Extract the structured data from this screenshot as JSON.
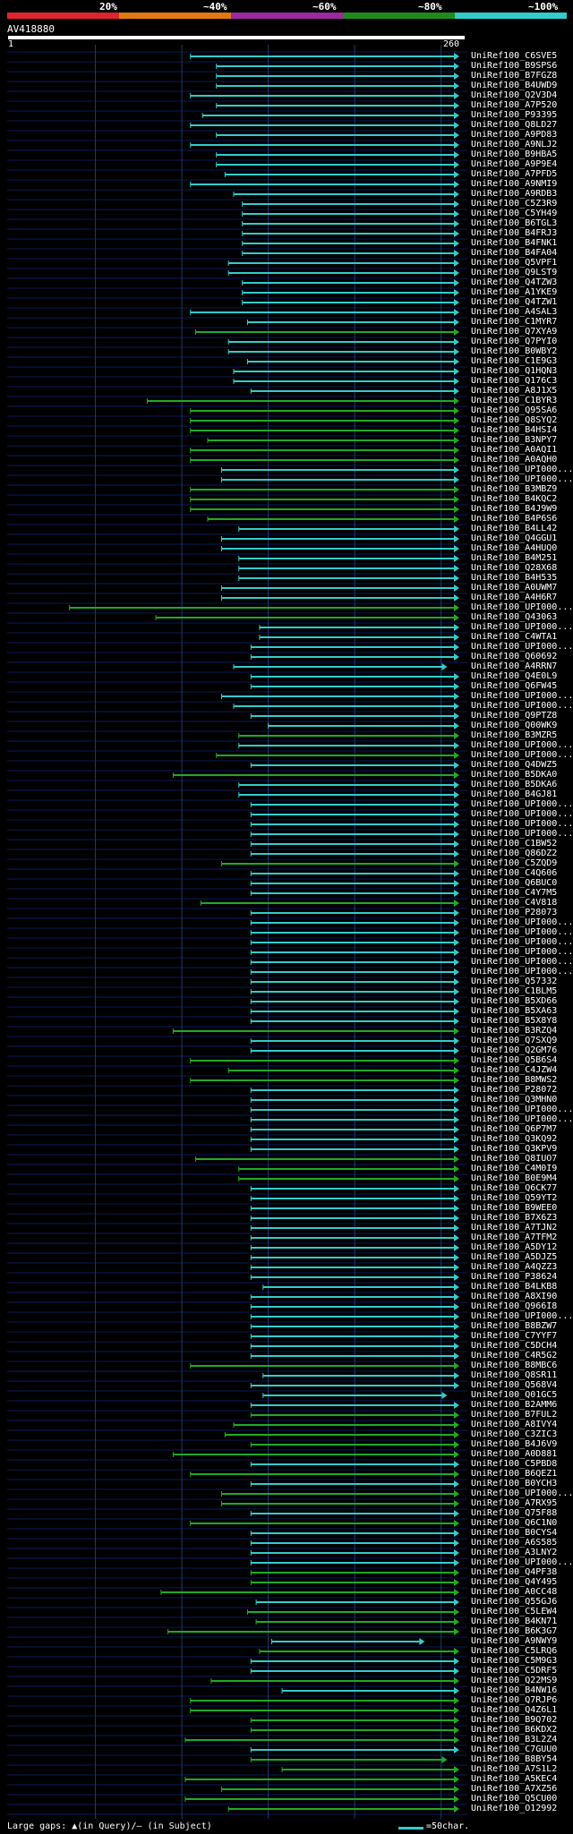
{
  "query": {
    "id": "AV418880",
    "start": "1",
    "end": "260"
  },
  "scale": {
    "labels": [
      "20%",
      "~40%",
      "~60%",
      "~80%",
      "~100%"
    ],
    "colors": [
      "#e0242c",
      "#e07a10",
      "#9a2aa0",
      "#1e8a1e",
      "#33cccc"
    ]
  },
  "footer": {
    "gaps_text": "Large gaps: ▲(in Query)/– (in Subject)",
    "legend_text": "=50char."
  },
  "chart_data": {
    "type": "alignment",
    "query_length": 260,
    "x_unit": "query position",
    "hits": [
      {
        "id": "UniRef100_C6SVE5",
        "s": 105,
        "e": 260,
        "c": "cyan"
      },
      {
        "id": "UniRef100_B9SPS6",
        "s": 120,
        "e": 260,
        "c": "cyan"
      },
      {
        "id": "UniRef100_B7FGZ8",
        "s": 120,
        "e": 260,
        "c": "cyan"
      },
      {
        "id": "UniRef100_B4UWD9",
        "s": 120,
        "e": 260,
        "c": "cyan"
      },
      {
        "id": "UniRef100_Q2V3D4",
        "s": 105,
        "e": 260,
        "c": "cyan"
      },
      {
        "id": "UniRef100_A7P520",
        "s": 120,
        "e": 260,
        "c": "cyan"
      },
      {
        "id": "UniRef100_P93395",
        "s": 112,
        "e": 260,
        "c": "cyan"
      },
      {
        "id": "UniRef100_Q8LD27",
        "s": 105,
        "e": 260,
        "c": "cyan"
      },
      {
        "id": "UniRef100_A9PD83",
        "s": 120,
        "e": 260,
        "c": "cyan"
      },
      {
        "id": "UniRef100_A9NLJ2",
        "s": 105,
        "e": 260,
        "c": "cyan"
      },
      {
        "id": "UniRef100_B9HBA5",
        "s": 120,
        "e": 260,
        "c": "cyan"
      },
      {
        "id": "UniRef100_A9P9E4",
        "s": 120,
        "e": 260,
        "c": "cyan"
      },
      {
        "id": "UniRef100_A7PFD5",
        "s": 125,
        "e": 260,
        "c": "cyan"
      },
      {
        "id": "UniRef100_A9NMI9",
        "s": 105,
        "e": 260,
        "c": "cyan"
      },
      {
        "id": "UniRef100_A9RDB3",
        "s": 130,
        "e": 260,
        "c": "cyan"
      },
      {
        "id": "UniRef100_C5Z3R9",
        "s": 135,
        "e": 260,
        "c": "cyan"
      },
      {
        "id": "UniRef100_C5YH49",
        "s": 135,
        "e": 260,
        "c": "cyan"
      },
      {
        "id": "UniRef100_B6TGL3",
        "s": 135,
        "e": 260,
        "c": "cyan"
      },
      {
        "id": "UniRef100_B4FRJ3",
        "s": 135,
        "e": 260,
        "c": "cyan"
      },
      {
        "id": "UniRef100_B4FNK1",
        "s": 135,
        "e": 260,
        "c": "cyan"
      },
      {
        "id": "UniRef100_B4FA04",
        "s": 135,
        "e": 260,
        "c": "cyan"
      },
      {
        "id": "UniRef100_Q5VPF1",
        "s": 127,
        "e": 260,
        "c": "cyan"
      },
      {
        "id": "UniRef100_Q9LST9",
        "s": 127,
        "e": 260,
        "c": "cyan"
      },
      {
        "id": "UniRef100_Q4TZW3",
        "s": 135,
        "e": 260,
        "c": "cyan"
      },
      {
        "id": "UniRef100_A1YKE9",
        "s": 135,
        "e": 260,
        "c": "cyan"
      },
      {
        "id": "UniRef100_Q4TZW1",
        "s": 135,
        "e": 260,
        "c": "cyan"
      },
      {
        "id": "UniRef100_A4SAL3",
        "s": 105,
        "e": 260,
        "c": "cyan"
      },
      {
        "id": "UniRef100_C1MYR7",
        "s": 138,
        "e": 260,
        "c": "cyan"
      },
      {
        "id": "UniRef100_Q7XYA9",
        "s": 108,
        "e": 260,
        "c": "green"
      },
      {
        "id": "UniRef100_Q7PYI0",
        "s": 127,
        "e": 260,
        "c": "cyan"
      },
      {
        "id": "UniRef100_B0WBY2",
        "s": 127,
        "e": 260,
        "c": "cyan"
      },
      {
        "id": "UniRef100_C1E9G3",
        "s": 138,
        "e": 260,
        "c": "cyan"
      },
      {
        "id": "UniRef100_Q1HQN3",
        "s": 130,
        "e": 260,
        "c": "cyan"
      },
      {
        "id": "UniRef100_Q176C3",
        "s": 130,
        "e": 260,
        "c": "cyan"
      },
      {
        "id": "UniRef100_A8J1X5",
        "s": 140,
        "e": 260,
        "c": "cyan"
      },
      {
        "id": "UniRef100_C1BYR3",
        "s": 80,
        "e": 260,
        "c": "green"
      },
      {
        "id": "UniRef100_Q95SA6",
        "s": 105,
        "e": 260,
        "c": "green"
      },
      {
        "id": "UniRef100_Q8SYQ2",
        "s": 105,
        "e": 260,
        "c": "green"
      },
      {
        "id": "UniRef100_B4HSI4",
        "s": 105,
        "e": 260,
        "c": "green"
      },
      {
        "id": "UniRef100_B3NPY7",
        "s": 115,
        "e": 260,
        "c": "green"
      },
      {
        "id": "UniRef100_A0AQI1",
        "s": 105,
        "e": 260,
        "c": "green"
      },
      {
        "id": "UniRef100_A0AQH0",
        "s": 105,
        "e": 260,
        "c": "green"
      },
      {
        "id": "UniRef100_UPI000...",
        "s": 123,
        "e": 260,
        "c": "cyan"
      },
      {
        "id": "UniRef100_UPI000...",
        "s": 123,
        "e": 260,
        "c": "cyan"
      },
      {
        "id": "UniRef100_B3MBZ9",
        "s": 105,
        "e": 260,
        "c": "green"
      },
      {
        "id": "UniRef100_B4KQC2",
        "s": 105,
        "e": 260,
        "c": "green"
      },
      {
        "id": "UniRef100_B4J9W9",
        "s": 105,
        "e": 260,
        "c": "green"
      },
      {
        "id": "UniRef100_B4P6S6",
        "s": 115,
        "e": 260,
        "c": "green"
      },
      {
        "id": "UniRef100_B4LL42",
        "s": 133,
        "e": 260,
        "c": "cyan"
      },
      {
        "id": "UniRef100_Q4GGU1",
        "s": 123,
        "e": 260,
        "c": "cyan"
      },
      {
        "id": "UniRef100_A4HUQ0",
        "s": 123,
        "e": 260,
        "c": "cyan"
      },
      {
        "id": "UniRef100_B4M251",
        "s": 133,
        "e": 260,
        "c": "cyan"
      },
      {
        "id": "UniRef100_Q28X68",
        "s": 133,
        "e": 260,
        "c": "cyan"
      },
      {
        "id": "UniRef100_B4H535",
        "s": 133,
        "e": 260,
        "c": "cyan"
      },
      {
        "id": "UniRef100_A0UWM7",
        "s": 123,
        "e": 260,
        "c": "cyan"
      },
      {
        "id": "UniRef100_A4H6R7",
        "s": 123,
        "e": 260,
        "c": "cyan"
      },
      {
        "id": "UniRef100_UPI000...",
        "s": 35,
        "e": 260,
        "c": "green"
      },
      {
        "id": "UniRef100_Q43063",
        "s": 85,
        "e": 260,
        "c": "green"
      },
      {
        "id": "UniRef100_UPI000...",
        "s": 145,
        "e": 260,
        "c": "cyan"
      },
      {
        "id": "UniRef100_C4WTA1",
        "s": 145,
        "e": 260,
        "c": "cyan"
      },
      {
        "id": "UniRef100_UPI000...",
        "s": 140,
        "e": 260,
        "c": "cyan"
      },
      {
        "id": "UniRef100_Q60692",
        "s": 140,
        "e": 260,
        "c": "cyan"
      },
      {
        "id": "UniRef100_A4RRN7",
        "s": 130,
        "e": 253,
        "c": "cyan"
      },
      {
        "id": "UniRef100_Q4E0L9",
        "s": 140,
        "e": 260,
        "c": "cyan"
      },
      {
        "id": "UniRef100_Q6FW45",
        "s": 140,
        "e": 260,
        "c": "cyan"
      },
      {
        "id": "UniRef100_UPI000...",
        "s": 123,
        "e": 260,
        "c": "cyan"
      },
      {
        "id": "UniRef100_UPI000...",
        "s": 130,
        "e": 260,
        "c": "cyan"
      },
      {
        "id": "UniRef100_Q9PTZ8",
        "s": 140,
        "e": 260,
        "c": "cyan"
      },
      {
        "id": "UniRef100_Q00WK9",
        "s": 150,
        "e": 260,
        "c": "cyan"
      },
      {
        "id": "UniRef100_B3MZR5",
        "s": 133,
        "e": 260,
        "c": "green"
      },
      {
        "id": "UniRef100_UPI000...",
        "s": 133,
        "e": 260,
        "c": "cyan"
      },
      {
        "id": "UniRef100_UPI000...",
        "s": 120,
        "e": 260,
        "c": "green"
      },
      {
        "id": "UniRef100_Q4DWZ5",
        "s": 140,
        "e": 260,
        "c": "cyan"
      },
      {
        "id": "UniRef100_B5DKA0",
        "s": 95,
        "e": 260,
        "c": "green"
      },
      {
        "id": "UniRef100_B5DKA6",
        "s": 133,
        "e": 260,
        "c": "cyan"
      },
      {
        "id": "UniRef100_B4GJ81",
        "s": 133,
        "e": 260,
        "c": "cyan"
      },
      {
        "id": "UniRef100_UPI000...",
        "s": 140,
        "e": 260,
        "c": "cyan"
      },
      {
        "id": "UniRef100_UPI000...",
        "s": 140,
        "e": 260,
        "c": "cyan"
      },
      {
        "id": "UniRef100_UPI000...",
        "s": 140,
        "e": 260,
        "c": "cyan"
      },
      {
        "id": "UniRef100_UPI000...",
        "s": 140,
        "e": 260,
        "c": "cyan"
      },
      {
        "id": "UniRef100_C1BW52",
        "s": 140,
        "e": 260,
        "c": "cyan"
      },
      {
        "id": "UniRef100_Q86DZ2",
        "s": 140,
        "e": 260,
        "c": "cyan"
      },
      {
        "id": "UniRef100_C5ZQD9",
        "s": 123,
        "e": 260,
        "c": "green"
      },
      {
        "id": "UniRef100_C4Q606",
        "s": 140,
        "e": 260,
        "c": "cyan"
      },
      {
        "id": "UniRef100_Q6BUC0",
        "s": 140,
        "e": 260,
        "c": "cyan"
      },
      {
        "id": "UniRef100_C4Y7M5",
        "s": 140,
        "e": 260,
        "c": "cyan"
      },
      {
        "id": "UniRef100_C4V818",
        "s": 111,
        "e": 260,
        "c": "green"
      },
      {
        "id": "UniRef100_P28073",
        "s": 140,
        "e": 260,
        "c": "cyan"
      },
      {
        "id": "UniRef100_UPI000...",
        "s": 140,
        "e": 260,
        "c": "cyan"
      },
      {
        "id": "UniRef100_UPI000...",
        "s": 140,
        "e": 260,
        "c": "cyan"
      },
      {
        "id": "UniRef100_UPI000...",
        "s": 140,
        "e": 260,
        "c": "cyan"
      },
      {
        "id": "UniRef100_UPI000...",
        "s": 140,
        "e": 260,
        "c": "cyan"
      },
      {
        "id": "UniRef100_UPI000...",
        "s": 140,
        "e": 260,
        "c": "cyan"
      },
      {
        "id": "UniRef100_UPI000...",
        "s": 140,
        "e": 260,
        "c": "cyan"
      },
      {
        "id": "UniRef100_Q57332",
        "s": 140,
        "e": 260,
        "c": "cyan"
      },
      {
        "id": "UniRef100_C1BLM5",
        "s": 140,
        "e": 260,
        "c": "cyan"
      },
      {
        "id": "UniRef100_B5XD66",
        "s": 140,
        "e": 260,
        "c": "cyan"
      },
      {
        "id": "UniRef100_B5XA63",
        "s": 140,
        "e": 260,
        "c": "cyan"
      },
      {
        "id": "UniRef100_B5X8Y8",
        "s": 140,
        "e": 260,
        "c": "cyan"
      },
      {
        "id": "UniRef100_B3RZQ4",
        "s": 95,
        "e": 260,
        "c": "green"
      },
      {
        "id": "UniRef100_Q7SXQ9",
        "s": 140,
        "e": 260,
        "c": "cyan"
      },
      {
        "id": "UniRef100_Q2GM76",
        "s": 140,
        "e": 260,
        "c": "cyan"
      },
      {
        "id": "UniRef100_Q5B6S4",
        "s": 105,
        "e": 260,
        "c": "green"
      },
      {
        "id": "UniRef100_C4JZW4",
        "s": 127,
        "e": 260,
        "c": "green"
      },
      {
        "id": "UniRef100_B8MWS2",
        "s": 105,
        "e": 260,
        "c": "green"
      },
      {
        "id": "UniRef100_P28072",
        "s": 140,
        "e": 260,
        "c": "cyan"
      },
      {
        "id": "UniRef100_Q3MHN0",
        "s": 140,
        "e": 260,
        "c": "cyan"
      },
      {
        "id": "UniRef100_UPI000...",
        "s": 140,
        "e": 260,
        "c": "cyan"
      },
      {
        "id": "UniRef100_UPI000...",
        "s": 140,
        "e": 260,
        "c": "cyan"
      },
      {
        "id": "UniRef100_Q6P7M7",
        "s": 140,
        "e": 260,
        "c": "cyan"
      },
      {
        "id": "UniRef100_Q3KQ92",
        "s": 140,
        "e": 260,
        "c": "cyan"
      },
      {
        "id": "UniRef100_Q3KPV9",
        "s": 140,
        "e": 260,
        "c": "cyan"
      },
      {
        "id": "UniRef100_Q8IUO7",
        "s": 108,
        "e": 260,
        "c": "green"
      },
      {
        "id": "UniRef100_C4M0I9",
        "s": 133,
        "e": 260,
        "c": "green"
      },
      {
        "id": "UniRef100_B0E9M4",
        "s": 133,
        "e": 260,
        "c": "green"
      },
      {
        "id": "UniRef100_Q6CK77",
        "s": 140,
        "e": 260,
        "c": "cyan"
      },
      {
        "id": "UniRef100_Q59YT2",
        "s": 140,
        "e": 260,
        "c": "cyan"
      },
      {
        "id": "UniRef100_B9WEE0",
        "s": 140,
        "e": 260,
        "c": "cyan"
      },
      {
        "id": "UniRef100_B7X6Z3",
        "s": 140,
        "e": 260,
        "c": "cyan"
      },
      {
        "id": "UniRef100_A7TJN2",
        "s": 140,
        "e": 260,
        "c": "cyan"
      },
      {
        "id": "UniRef100_A7TFM2",
        "s": 140,
        "e": 260,
        "c": "cyan"
      },
      {
        "id": "UniRef100_A5DY12",
        "s": 140,
        "e": 260,
        "c": "cyan"
      },
      {
        "id": "UniRef100_A5DJZ5",
        "s": 140,
        "e": 260,
        "c": "cyan"
      },
      {
        "id": "UniRef100_A4QZZ3",
        "s": 140,
        "e": 260,
        "c": "cyan"
      },
      {
        "id": "UniRef100_P38624",
        "s": 140,
        "e": 260,
        "c": "cyan"
      },
      {
        "id": "UniRef100_B4LKB8",
        "s": 147,
        "e": 260,
        "c": "cyan"
      },
      {
        "id": "UniRef100_A8XI90",
        "s": 140,
        "e": 260,
        "c": "cyan"
      },
      {
        "id": "UniRef100_Q966I8",
        "s": 140,
        "e": 260,
        "c": "cyan"
      },
      {
        "id": "UniRef100_UPI000...",
        "s": 140,
        "e": 260,
        "c": "cyan"
      },
      {
        "id": "UniRef100_B8BZW7",
        "s": 140,
        "e": 260,
        "c": "cyan"
      },
      {
        "id": "UniRef100_C7YYF7",
        "s": 140,
        "e": 260,
        "c": "cyan"
      },
      {
        "id": "UniRef100_C5DCH4",
        "s": 140,
        "e": 260,
        "c": "cyan"
      },
      {
        "id": "UniRef100_C4R5G2",
        "s": 140,
        "e": 260,
        "c": "cyan"
      },
      {
        "id": "UniRef100_B8MBC6",
        "s": 105,
        "e": 260,
        "c": "green"
      },
      {
        "id": "UniRef100_Q8SR11",
        "s": 147,
        "e": 260,
        "c": "cyan"
      },
      {
        "id": "UniRef100_Q568V4",
        "s": 140,
        "e": 260,
        "c": "cyan"
      },
      {
        "id": "UniRef100_Q01GC5",
        "s": 147,
        "e": 253,
        "c": "cyan"
      },
      {
        "id": "UniRef100_B2AMM6",
        "s": 140,
        "e": 260,
        "c": "cyan"
      },
      {
        "id": "UniRef100_B7FUL2",
        "s": 140,
        "e": 260,
        "c": "green"
      },
      {
        "id": "UniRef100_A8IVY4",
        "s": 130,
        "e": 260,
        "c": "green"
      },
      {
        "id": "UniRef100_C3ZIC3",
        "s": 125,
        "e": 260,
        "c": "green"
      },
      {
        "id": "UniRef100_B4J6V9",
        "s": 140,
        "e": 260,
        "c": "green"
      },
      {
        "id": "UniRef100_A0D881",
        "s": 95,
        "e": 260,
        "c": "green"
      },
      {
        "id": "UniRef100_C5PBD8",
        "s": 140,
        "e": 260,
        "c": "cyan"
      },
      {
        "id": "UniRef100_B6QEZ1",
        "s": 105,
        "e": 260,
        "c": "green"
      },
      {
        "id": "UniRef100_B0YCH3",
        "s": 140,
        "e": 260,
        "c": "cyan"
      },
      {
        "id": "UniRef100_UPI000...",
        "s": 123,
        "e": 260,
        "c": "green"
      },
      {
        "id": "UniRef100_A7RX95",
        "s": 123,
        "e": 260,
        "c": "green"
      },
      {
        "id": "UniRef100_Q75F88",
        "s": 140,
        "e": 260,
        "c": "cyan"
      },
      {
        "id": "UniRef100_Q6C1N0",
        "s": 105,
        "e": 260,
        "c": "green"
      },
      {
        "id": "UniRef100_B0CYS4",
        "s": 140,
        "e": 260,
        "c": "cyan"
      },
      {
        "id": "UniRef100_A6S585",
        "s": 140,
        "e": 260,
        "c": "cyan"
      },
      {
        "id": "UniRef100_A3LNY2",
        "s": 140,
        "e": 260,
        "c": "cyan"
      },
      {
        "id": "UniRef100_UPI000...",
        "s": 140,
        "e": 260,
        "c": "cyan"
      },
      {
        "id": "UniRef100_Q4PF38",
        "s": 140,
        "e": 260,
        "c": "green"
      },
      {
        "id": "UniRef100_Q4Y495",
        "s": 140,
        "e": 260,
        "c": "green"
      },
      {
        "id": "UniRef100_A0CC48",
        "s": 88,
        "e": 260,
        "c": "green"
      },
      {
        "id": "UniRef100_Q55GJ6",
        "s": 143,
        "e": 260,
        "c": "cyan"
      },
      {
        "id": "UniRef100_C5LEW4",
        "s": 138,
        "e": 260,
        "c": "green"
      },
      {
        "id": "UniRef100_B4KN71",
        "s": 143,
        "e": 260,
        "c": "green"
      },
      {
        "id": "UniRef100_B6K3G7",
        "s": 92,
        "e": 260,
        "c": "green"
      },
      {
        "id": "UniRef100_A9NWY9",
        "s": 152,
        "e": 240,
        "c": "cyan"
      },
      {
        "id": "UniRef100_C5LRQ6",
        "s": 145,
        "e": 260,
        "c": "green"
      },
      {
        "id": "UniRef100_C5M9G3",
        "s": 140,
        "e": 260,
        "c": "cyan"
      },
      {
        "id": "UniRef100_C5DRF5",
        "s": 140,
        "e": 260,
        "c": "cyan"
      },
      {
        "id": "UniRef100_Q22MS9",
        "s": 117,
        "e": 260,
        "c": "green"
      },
      {
        "id": "UniRef100_B4NW16",
        "s": 158,
        "e": 260,
        "c": "cyan"
      },
      {
        "id": "UniRef100_Q7RJP6",
        "s": 105,
        "e": 260,
        "c": "green"
      },
      {
        "id": "UniRef100_Q4Z6L1",
        "s": 105,
        "e": 260,
        "c": "green"
      },
      {
        "id": "UniRef100_B9Q702",
        "s": 140,
        "e": 260,
        "c": "green"
      },
      {
        "id": "UniRef100_B6KDX2",
        "s": 140,
        "e": 260,
        "c": "green"
      },
      {
        "id": "UniRef100_B3L2Z4",
        "s": 102,
        "e": 260,
        "c": "green"
      },
      {
        "id": "UniRef100_C7GUU0",
        "s": 140,
        "e": 260,
        "c": "cyan"
      },
      {
        "id": "UniRef100_B8BY54",
        "s": 140,
        "e": 253,
        "c": "green"
      },
      {
        "id": "UniRef100_A7S1L2",
        "s": 158,
        "e": 260,
        "c": "green"
      },
      {
        "id": "UniRef100_A5KEC4",
        "s": 102,
        "e": 260,
        "c": "green"
      },
      {
        "id": "UniRef100_A7XZ56",
        "s": 123,
        "e": 260,
        "c": "green"
      },
      {
        "id": "UniRef100_Q5CU00",
        "s": 102,
        "e": 260,
        "c": "green"
      },
      {
        "id": "UniRef100_O12992",
        "s": 127,
        "e": 260,
        "c": "green"
      }
    ]
  }
}
